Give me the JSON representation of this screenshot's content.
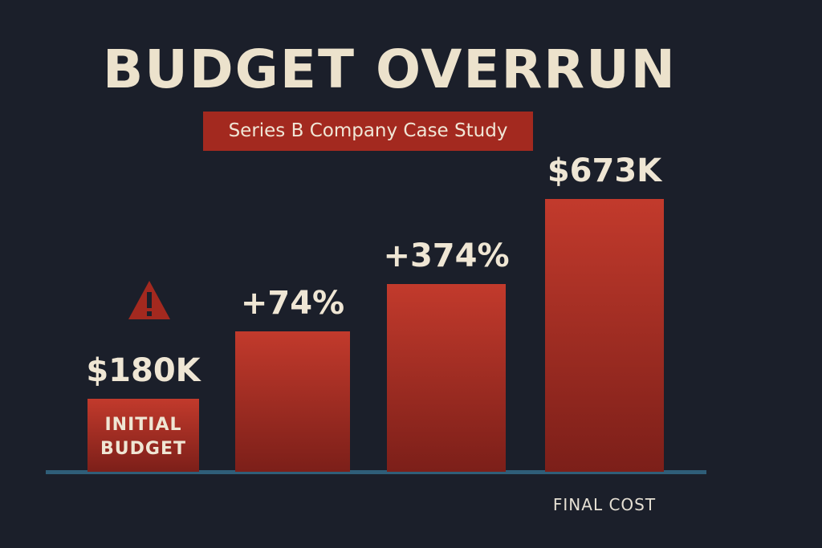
{
  "chart_data": {
    "type": "bar",
    "title": "BUDGET OVERRUN",
    "subtitle": "Series B Company Case Study",
    "categories": [
      "INITIAL BUDGET",
      null,
      null,
      "FINAL COST"
    ],
    "values": [
      180,
      346,
      463,
      673
    ],
    "annotations": [
      "$180K",
      "+74%",
      "+374%",
      "$673K"
    ],
    "color": "#c23a2c"
  }
}
